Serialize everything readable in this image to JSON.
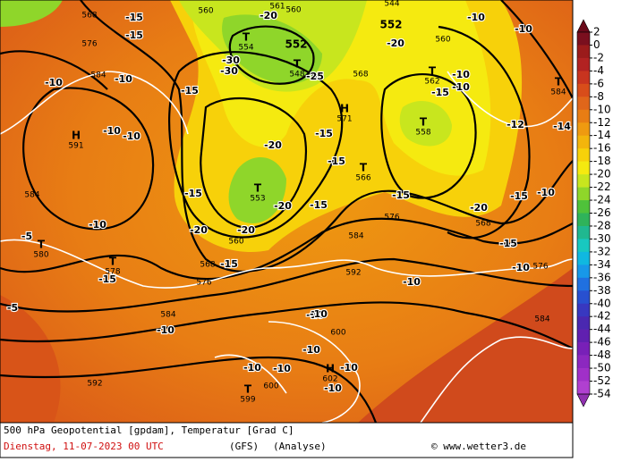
{
  "map": {
    "pressure_labels": [
      "560",
      "561",
      "560",
      "568",
      "576",
      "584",
      "560",
      "568",
      "584",
      "584",
      "576",
      "568",
      "592",
      "576",
      "568",
      "576",
      "584",
      "584",
      "600",
      "592",
      "600",
      "544",
      "560",
      "552",
      "552"
    ],
    "temperature_labels": [
      "-15",
      "-15",
      "-20",
      "-20",
      "-30",
      "-30",
      "-25",
      "-10",
      "-10",
      "-15",
      "-10",
      "-10",
      "-10",
      "-10",
      "-15",
      "-10",
      "-10",
      "-15",
      "-20",
      "-15",
      "-15",
      "-20",
      "-20",
      "-20",
      "-15",
      "-15",
      "-20",
      "-15",
      "-10",
      "-15",
      "-10",
      "-10",
      "-5",
      "-15",
      "-5",
      "-10",
      "-10",
      "-10",
      "-10",
      "-10",
      "-10",
      "-10",
      "-10",
      "-10",
      "-15",
      "-12",
      "-14"
    ],
    "centers": [
      {
        "symbol": "T",
        "value": "554"
      },
      {
        "symbol": "T",
        "value": "548"
      },
      {
        "symbol": "H",
        "value": "591"
      },
      {
        "symbol": "H",
        "value": "571"
      },
      {
        "symbol": "T",
        "value": "562"
      },
      {
        "symbol": "T",
        "value": "558"
      },
      {
        "symbol": "T",
        "value": "566"
      },
      {
        "symbol": "T",
        "value": "553"
      },
      {
        "symbol": "T",
        "value": "580"
      },
      {
        "symbol": "T",
        "value": "578"
      },
      {
        "symbol": "T",
        "value": "599"
      },
      {
        "symbol": "H",
        "value": "602"
      },
      {
        "symbol": "T",
        "value": "584"
      }
    ]
  },
  "colorbar": {
    "labels": [
      2,
      0,
      -2,
      -4,
      -6,
      -8,
      -10,
      -12,
      -14,
      -16,
      -18,
      -20,
      -22,
      -24,
      -26,
      -28,
      -30,
      -32,
      -34,
      -36,
      -38,
      -40,
      -42,
      -44,
      -46,
      -48,
      -50,
      -52,
      -54
    ],
    "colors": [
      "#7a0f1e",
      "#9b1b1b",
      "#b22222",
      "#c8341f",
      "#d84d1a",
      "#e0661a",
      "#e87d14",
      "#ef9a10",
      "#f3b50c",
      "#f7d10a",
      "#f5ea10",
      "#c8e61e",
      "#8fd62a",
      "#4fc23a",
      "#2fb35a",
      "#20b890",
      "#18c8c0",
      "#10b8e0",
      "#1898e8",
      "#2070e0",
      "#2850d0",
      "#3838c0",
      "#4a28b0",
      "#6020b0",
      "#7820b8",
      "#8c28c0",
      "#a030c8",
      "#b040d0"
    ],
    "above_color": "#6a0a1a",
    "below_color": "#9030b0"
  },
  "footer": {
    "title": "500 hPa Geopotential [gpdam], Temperatur [Grad C]",
    "date": "Dienstag, 11-07-2023  00 UTC",
    "model": "(GFS)",
    "mode": "(Analyse)",
    "copyright": "© www.wetter3.de"
  }
}
